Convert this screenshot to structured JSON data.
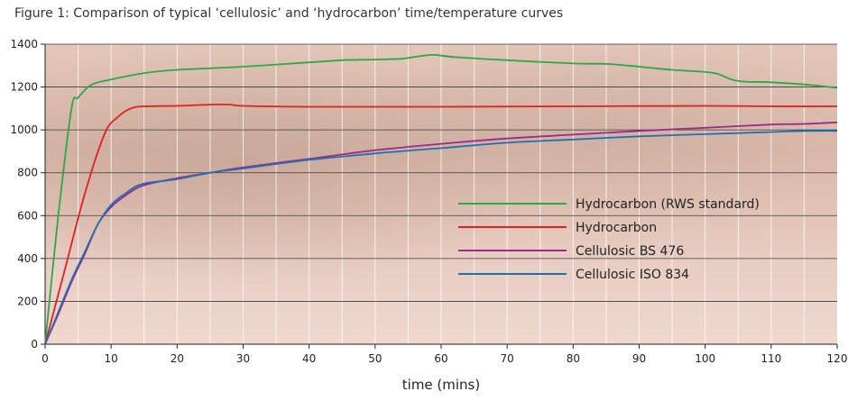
{
  "figure_title": "Figure 1:  Comparison of typical ‘cellulosic’ and ‘hydrocarbon’ time/temperature curves",
  "chart_data": {
    "type": "line",
    "title": "Figure 1:  Comparison of typical ‘cellulosic’ and ‘hydrocarbon’ time/temperature curves",
    "xlabel": "time (mins)",
    "ylabel": "",
    "xlim": [
      0,
      120
    ],
    "ylim": [
      0,
      1400
    ],
    "x_ticks": [
      0,
      10,
      20,
      30,
      40,
      50,
      60,
      70,
      80,
      90,
      100,
      110,
      120
    ],
    "y_ticks": [
      0,
      200,
      400,
      600,
      800,
      1000,
      1200,
      1400
    ],
    "grid": true,
    "legend_position": "right",
    "series": [
      {
        "name": "Hydrocarbon (RWS standard)",
        "color": "#2aa84a",
        "points": [
          [
            0,
            0
          ],
          [
            2,
            600
          ],
          [
            4,
            1100
          ],
          [
            5,
            1150
          ],
          [
            7,
            1210
          ],
          [
            10,
            1235
          ],
          [
            15,
            1265
          ],
          [
            20,
            1280
          ],
          [
            30,
            1295
          ],
          [
            40,
            1315
          ],
          [
            45,
            1325
          ],
          [
            50,
            1328
          ],
          [
            54,
            1332
          ],
          [
            57,
            1345
          ],
          [
            59,
            1350
          ],
          [
            62,
            1340
          ],
          [
            70,
            1325
          ],
          [
            80,
            1310
          ],
          [
            85,
            1308
          ],
          [
            90,
            1295
          ],
          [
            95,
            1280
          ],
          [
            100,
            1270
          ],
          [
            102,
            1260
          ],
          [
            104,
            1235
          ],
          [
            106,
            1225
          ],
          [
            110,
            1222
          ],
          [
            115,
            1212
          ],
          [
            120,
            1196
          ]
        ]
      },
      {
        "name": "Hydrocarbon",
        "color": "#e31e24",
        "points": [
          [
            0,
            0
          ],
          [
            3,
            350
          ],
          [
            6,
            700
          ],
          [
            9,
            980
          ],
          [
            11,
            1060
          ],
          [
            13,
            1100
          ],
          [
            15,
            1110
          ],
          [
            20,
            1112
          ],
          [
            25,
            1118
          ],
          [
            28,
            1118
          ],
          [
            30,
            1112
          ],
          [
            40,
            1108
          ],
          [
            60,
            1108
          ],
          [
            80,
            1110
          ],
          [
            100,
            1112
          ],
          [
            110,
            1110
          ],
          [
            120,
            1110
          ]
        ]
      },
      {
        "name": "Cellulosic BS 476",
        "color": "#9b2a8c",
        "points": [
          [
            0,
            0
          ],
          [
            2,
            140
          ],
          [
            4,
            290
          ],
          [
            6,
            420
          ],
          [
            8,
            560
          ],
          [
            10,
            640
          ],
          [
            12,
            690
          ],
          [
            14,
            730
          ],
          [
            16,
            750
          ],
          [
            20,
            775
          ],
          [
            25,
            800
          ],
          [
            30,
            825
          ],
          [
            40,
            865
          ],
          [
            50,
            905
          ],
          [
            60,
            935
          ],
          [
            70,
            960
          ],
          [
            80,
            978
          ],
          [
            90,
            995
          ],
          [
            100,
            1010
          ],
          [
            110,
            1025
          ],
          [
            115,
            1028
          ],
          [
            120,
            1035
          ]
        ]
      },
      {
        "name": "Cellulosic ISO 834",
        "color": "#1f6fb5",
        "points": [
          [
            0,
            0
          ],
          [
            2,
            150
          ],
          [
            4,
            300
          ],
          [
            6,
            430
          ],
          [
            8,
            560
          ],
          [
            10,
            650
          ],
          [
            12,
            700
          ],
          [
            14,
            740
          ],
          [
            16,
            755
          ],
          [
            20,
            770
          ],
          [
            25,
            800
          ],
          [
            30,
            820
          ],
          [
            40,
            860
          ],
          [
            50,
            890
          ],
          [
            60,
            915
          ],
          [
            70,
            940
          ],
          [
            80,
            955
          ],
          [
            90,
            970
          ],
          [
            100,
            980
          ],
          [
            110,
            990
          ],
          [
            115,
            995
          ],
          [
            120,
            995
          ]
        ]
      }
    ]
  }
}
